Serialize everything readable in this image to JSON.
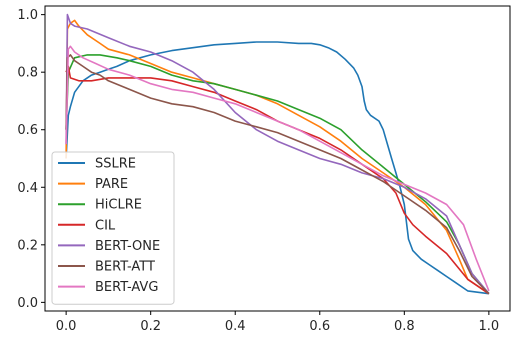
{
  "chart_data": {
    "type": "line",
    "title": "",
    "xlabel": "",
    "ylabel": "",
    "xlim": [
      -0.05,
      1.05
    ],
    "ylim": [
      -0.03,
      1.03
    ],
    "xticks": [
      "0.0",
      "0.2",
      "0.4",
      "0.6",
      "0.8",
      "1.0"
    ],
    "yticks": [
      "0.0",
      "0.2",
      "0.4",
      "0.6",
      "0.8",
      "1.0"
    ],
    "grid": false,
    "legend_position": "lower-left",
    "series": [
      {
        "name": "SSLRE",
        "color": "#1f77b4",
        "points": [
          [
            0.0,
            0.5
          ],
          [
            0.005,
            0.65
          ],
          [
            0.01,
            0.68
          ],
          [
            0.02,
            0.73
          ],
          [
            0.04,
            0.77
          ],
          [
            0.06,
            0.79
          ],
          [
            0.08,
            0.8
          ],
          [
            0.1,
            0.81
          ],
          [
            0.12,
            0.82
          ],
          [
            0.15,
            0.84
          ],
          [
            0.2,
            0.86
          ],
          [
            0.25,
            0.875
          ],
          [
            0.3,
            0.885
          ],
          [
            0.35,
            0.895
          ],
          [
            0.4,
            0.9
          ],
          [
            0.45,
            0.905
          ],
          [
            0.5,
            0.905
          ],
          [
            0.55,
            0.9
          ],
          [
            0.58,
            0.9
          ],
          [
            0.6,
            0.895
          ],
          [
            0.62,
            0.885
          ],
          [
            0.64,
            0.87
          ],
          [
            0.66,
            0.845
          ],
          [
            0.68,
            0.815
          ],
          [
            0.69,
            0.79
          ],
          [
            0.7,
            0.75
          ],
          [
            0.705,
            0.7
          ],
          [
            0.71,
            0.67
          ],
          [
            0.72,
            0.65
          ],
          [
            0.74,
            0.63
          ],
          [
            0.75,
            0.6
          ],
          [
            0.76,
            0.55
          ],
          [
            0.77,
            0.5
          ],
          [
            0.78,
            0.45
          ],
          [
            0.79,
            0.4
          ],
          [
            0.8,
            0.34
          ],
          [
            0.805,
            0.28
          ],
          [
            0.81,
            0.22
          ],
          [
            0.82,
            0.18
          ],
          [
            0.84,
            0.15
          ],
          [
            0.86,
            0.13
          ],
          [
            0.88,
            0.11
          ],
          [
            0.9,
            0.09
          ],
          [
            0.92,
            0.07
          ],
          [
            0.95,
            0.04
          ],
          [
            1.0,
            0.03
          ]
        ]
      },
      {
        "name": "PARE",
        "color": "#ff7f0e",
        "points": [
          [
            0.0,
            0.5
          ],
          [
            0.003,
            0.95
          ],
          [
            0.01,
            0.97
          ],
          [
            0.02,
            0.98
          ],
          [
            0.03,
            0.96
          ],
          [
            0.05,
            0.93
          ],
          [
            0.08,
            0.9
          ],
          [
            0.1,
            0.88
          ],
          [
            0.15,
            0.86
          ],
          [
            0.2,
            0.83
          ],
          [
            0.25,
            0.8
          ],
          [
            0.3,
            0.78
          ],
          [
            0.35,
            0.76
          ],
          [
            0.4,
            0.74
          ],
          [
            0.45,
            0.72
          ],
          [
            0.5,
            0.69
          ],
          [
            0.55,
            0.65
          ],
          [
            0.6,
            0.61
          ],
          [
            0.65,
            0.56
          ],
          [
            0.7,
            0.5
          ],
          [
            0.75,
            0.45
          ],
          [
            0.8,
            0.4
          ],
          [
            0.85,
            0.34
          ],
          [
            0.9,
            0.25
          ],
          [
            0.93,
            0.15
          ],
          [
            0.95,
            0.08
          ],
          [
            1.0,
            0.03
          ]
        ]
      },
      {
        "name": "HiCLRE",
        "color": "#2ca02c",
        "points": [
          [
            0.0,
            0.6
          ],
          [
            0.005,
            0.8
          ],
          [
            0.02,
            0.85
          ],
          [
            0.05,
            0.86
          ],
          [
            0.08,
            0.86
          ],
          [
            0.12,
            0.85
          ],
          [
            0.15,
            0.84
          ],
          [
            0.2,
            0.82
          ],
          [
            0.25,
            0.79
          ],
          [
            0.3,
            0.77
          ],
          [
            0.35,
            0.76
          ],
          [
            0.4,
            0.74
          ],
          [
            0.45,
            0.72
          ],
          [
            0.5,
            0.7
          ],
          [
            0.55,
            0.67
          ],
          [
            0.6,
            0.64
          ],
          [
            0.65,
            0.6
          ],
          [
            0.7,
            0.53
          ],
          [
            0.75,
            0.47
          ],
          [
            0.8,
            0.41
          ],
          [
            0.85,
            0.35
          ],
          [
            0.9,
            0.28
          ],
          [
            0.93,
            0.2
          ],
          [
            0.96,
            0.1
          ],
          [
            1.0,
            0.03
          ]
        ]
      },
      {
        "name": "CIL",
        "color": "#d62728",
        "points": [
          [
            0.0,
            0.8
          ],
          [
            0.005,
            0.82
          ],
          [
            0.01,
            0.78
          ],
          [
            0.03,
            0.77
          ],
          [
            0.06,
            0.77
          ],
          [
            0.1,
            0.78
          ],
          [
            0.15,
            0.78
          ],
          [
            0.2,
            0.78
          ],
          [
            0.25,
            0.77
          ],
          [
            0.3,
            0.75
          ],
          [
            0.35,
            0.73
          ],
          [
            0.4,
            0.7
          ],
          [
            0.45,
            0.67
          ],
          [
            0.5,
            0.63
          ],
          [
            0.55,
            0.6
          ],
          [
            0.6,
            0.57
          ],
          [
            0.65,
            0.53
          ],
          [
            0.7,
            0.48
          ],
          [
            0.75,
            0.43
          ],
          [
            0.78,
            0.38
          ],
          [
            0.8,
            0.31
          ],
          [
            0.82,
            0.27
          ],
          [
            0.85,
            0.23
          ],
          [
            0.9,
            0.17
          ],
          [
            0.95,
            0.08
          ],
          [
            1.0,
            0.03
          ]
        ]
      },
      {
        "name": "BERT-ONE",
        "color": "#9467bd",
        "points": [
          [
            0.0,
            0.55
          ],
          [
            0.003,
            1.0
          ],
          [
            0.01,
            0.97
          ],
          [
            0.02,
            0.96
          ],
          [
            0.05,
            0.95
          ],
          [
            0.1,
            0.92
          ],
          [
            0.15,
            0.89
          ],
          [
            0.2,
            0.87
          ],
          [
            0.25,
            0.84
          ],
          [
            0.3,
            0.8
          ],
          [
            0.35,
            0.74
          ],
          [
            0.4,
            0.66
          ],
          [
            0.45,
            0.6
          ],
          [
            0.5,
            0.56
          ],
          [
            0.55,
            0.53
          ],
          [
            0.6,
            0.5
          ],
          [
            0.65,
            0.48
          ],
          [
            0.7,
            0.45
          ],
          [
            0.75,
            0.43
          ],
          [
            0.8,
            0.4
          ],
          [
            0.85,
            0.36
          ],
          [
            0.9,
            0.3
          ],
          [
            0.93,
            0.2
          ],
          [
            0.96,
            0.1
          ],
          [
            1.0,
            0.03
          ]
        ]
      },
      {
        "name": "BERT-ATT",
        "color": "#8c564b",
        "points": [
          [
            0.0,
            0.6
          ],
          [
            0.003,
            0.85
          ],
          [
            0.01,
            0.86
          ],
          [
            0.02,
            0.84
          ],
          [
            0.04,
            0.82
          ],
          [
            0.06,
            0.8
          ],
          [
            0.08,
            0.79
          ],
          [
            0.1,
            0.77
          ],
          [
            0.15,
            0.74
          ],
          [
            0.2,
            0.71
          ],
          [
            0.25,
            0.69
          ],
          [
            0.3,
            0.68
          ],
          [
            0.35,
            0.66
          ],
          [
            0.4,
            0.63
          ],
          [
            0.45,
            0.61
          ],
          [
            0.5,
            0.59
          ],
          [
            0.55,
            0.56
          ],
          [
            0.6,
            0.53
          ],
          [
            0.65,
            0.5
          ],
          [
            0.7,
            0.46
          ],
          [
            0.75,
            0.42
          ],
          [
            0.8,
            0.37
          ],
          [
            0.85,
            0.32
          ],
          [
            0.9,
            0.26
          ],
          [
            0.93,
            0.18
          ],
          [
            0.96,
            0.09
          ],
          [
            1.0,
            0.03
          ]
        ]
      },
      {
        "name": "BERT-AVG",
        "color": "#e377c2",
        "points": [
          [
            0.0,
            0.55
          ],
          [
            0.005,
            0.88
          ],
          [
            0.01,
            0.89
          ],
          [
            0.02,
            0.87
          ],
          [
            0.04,
            0.85
          ],
          [
            0.07,
            0.83
          ],
          [
            0.1,
            0.81
          ],
          [
            0.15,
            0.79
          ],
          [
            0.2,
            0.76
          ],
          [
            0.25,
            0.74
          ],
          [
            0.3,
            0.73
          ],
          [
            0.35,
            0.71
          ],
          [
            0.4,
            0.69
          ],
          [
            0.45,
            0.66
          ],
          [
            0.5,
            0.63
          ],
          [
            0.55,
            0.6
          ],
          [
            0.6,
            0.56
          ],
          [
            0.65,
            0.52
          ],
          [
            0.7,
            0.48
          ],
          [
            0.75,
            0.44
          ],
          [
            0.8,
            0.41
          ],
          [
            0.85,
            0.38
          ],
          [
            0.9,
            0.34
          ],
          [
            0.94,
            0.27
          ],
          [
            0.97,
            0.15
          ],
          [
            1.0,
            0.04
          ]
        ]
      }
    ]
  }
}
